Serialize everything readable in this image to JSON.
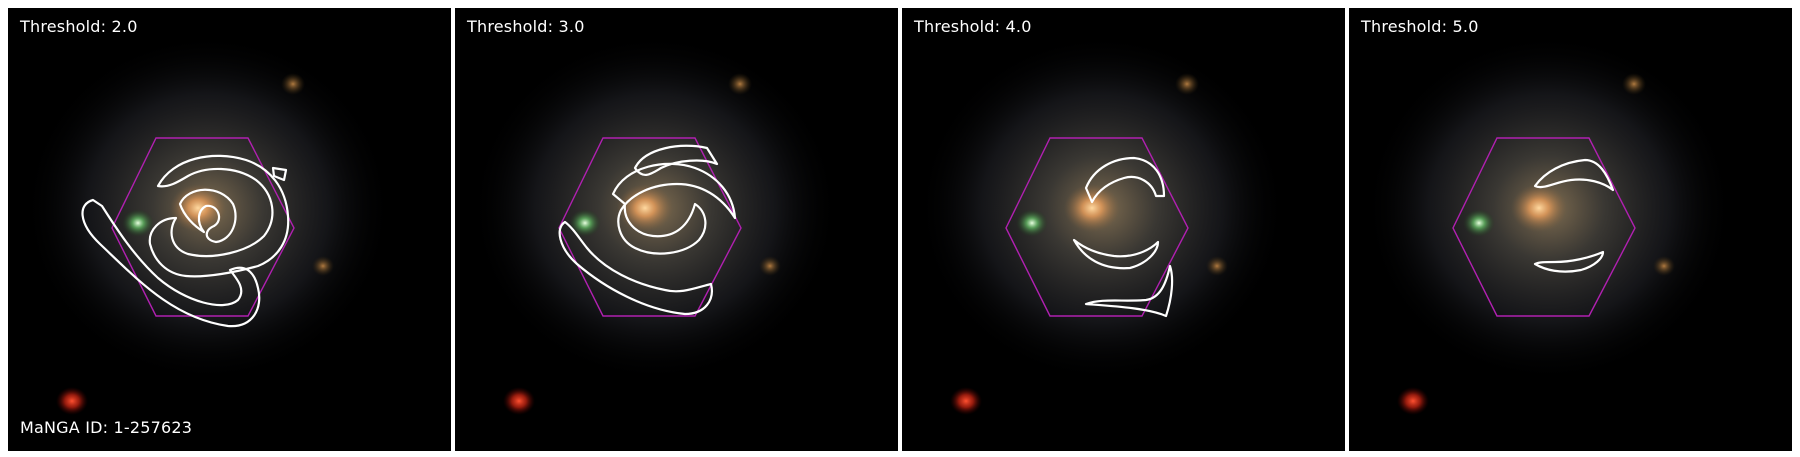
{
  "galaxy_id_label": "MaNGA ID: 1-257623",
  "colors": {
    "contour": "#ffffff",
    "hexagon": "#b020b0",
    "background": "#000000"
  },
  "panels": [
    {
      "threshold_label": "Threshold: 2.0"
    },
    {
      "threshold_label": "Threshold: 3.0"
    },
    {
      "threshold_label": "Threshold: 4.0"
    },
    {
      "threshold_label": "Threshold: 5.0"
    }
  ]
}
